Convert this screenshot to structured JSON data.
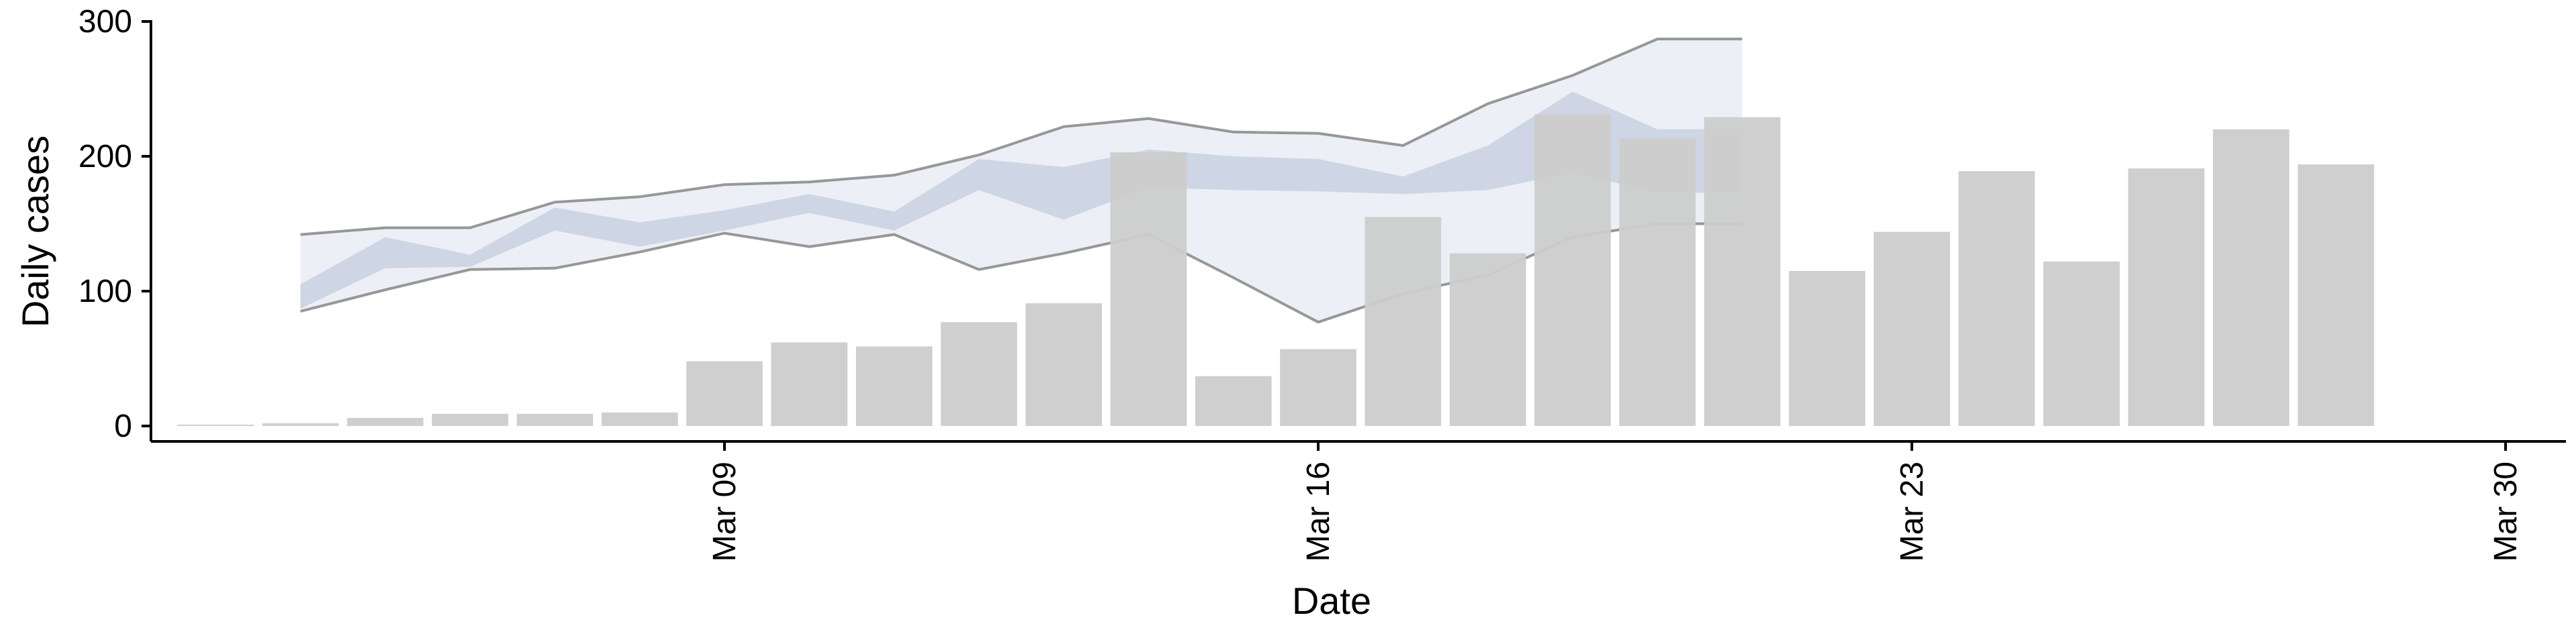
{
  "chart_data": {
    "type": "bar",
    "xlabel": "Date",
    "ylabel": "Daily cases",
    "ylim": [
      0,
      300
    ],
    "yticks": [
      0,
      100,
      200,
      300
    ],
    "xlim": [
      "2020-03-02",
      "2020-03-30"
    ],
    "xticks": [
      {
        "date": "2020-03-09",
        "label": "Mar 09"
      },
      {
        "date": "2020-03-16",
        "label": "Mar 16"
      },
      {
        "date": "2020-03-23",
        "label": "Mar 23"
      },
      {
        "date": "2020-03-30",
        "label": "Mar 30"
      }
    ],
    "grid": false,
    "legend": "none",
    "colors": {
      "bars": "#cccccc",
      "band_inner": "#c9d0e0",
      "band_outer": "#e6e9f1",
      "band_line": "#808080"
    },
    "bars": {
      "dates": [
        "2020-03-03",
        "2020-03-04",
        "2020-03-05",
        "2020-03-06",
        "2020-03-07",
        "2020-03-08",
        "2020-03-09",
        "2020-03-10",
        "2020-03-11",
        "2020-03-12",
        "2020-03-13",
        "2020-03-14",
        "2020-03-15",
        "2020-03-16",
        "2020-03-17",
        "2020-03-18",
        "2020-03-19",
        "2020-03-20",
        "2020-03-21",
        "2020-03-22",
        "2020-03-23",
        "2020-03-24",
        "2020-03-25",
        "2020-03-26",
        "2020-03-27",
        "2020-03-28",
        "2020-03-29"
      ],
      "values": [
        1,
        2,
        6,
        9,
        9,
        10,
        48,
        62,
        59,
        77,
        91,
        203,
        37,
        57,
        155,
        128,
        231,
        213,
        229,
        115,
        144,
        189,
        122,
        191,
        220,
        194,
        0
      ]
    },
    "ribbon": {
      "dates": [
        "2020-03-04",
        "2020-03-05",
        "2020-03-06",
        "2020-03-07",
        "2020-03-08",
        "2020-03-09",
        "2020-03-10",
        "2020-03-11",
        "2020-03-12",
        "2020-03-13",
        "2020-03-14",
        "2020-03-15",
        "2020-03-16",
        "2020-03-17",
        "2020-03-18",
        "2020-03-19",
        "2020-03-20",
        "2020-03-21"
      ],
      "outer_lower": [
        85,
        101,
        116,
        117,
        129,
        143,
        133,
        142,
        116,
        128,
        142,
        110,
        77,
        98,
        112,
        140,
        150,
        150
      ],
      "outer_upper": [
        142,
        147,
        147,
        166,
        170,
        179,
        181,
        186,
        201,
        222,
        228,
        218,
        217,
        208,
        239,
        260,
        287,
        287
      ],
      "inner_lower": [
        87,
        117,
        118,
        145,
        133,
        145,
        158,
        145,
        175,
        153,
        177,
        175,
        174,
        172,
        175,
        188,
        173,
        173
      ],
      "inner_upper": [
        105,
        140,
        127,
        162,
        151,
        160,
        172,
        159,
        198,
        192,
        205,
        200,
        198,
        185,
        208,
        248,
        220,
        220
      ]
    }
  }
}
